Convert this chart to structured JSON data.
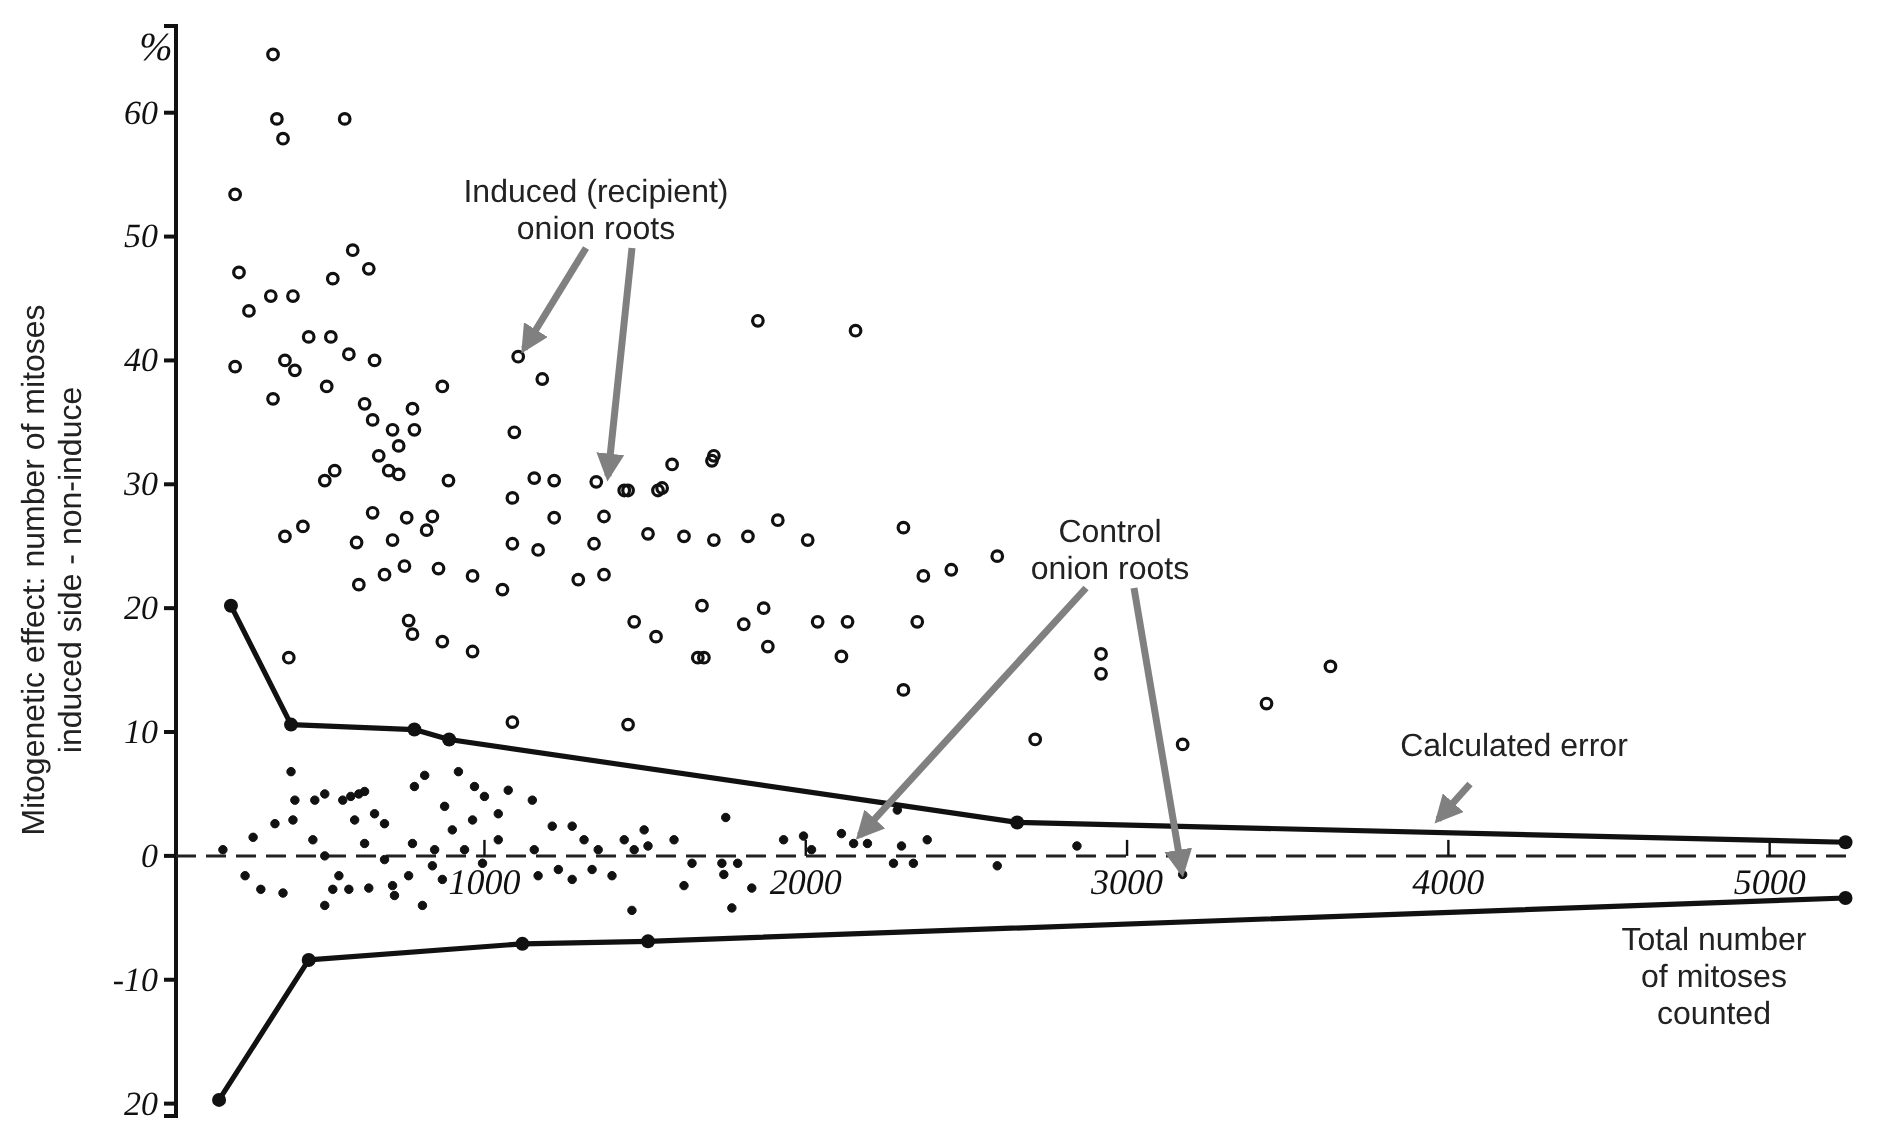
{
  "chart_data": {
    "type": "scatter",
    "ylabel": "Mitogenetic effect: number of mitoses\ninduced side - non-induce",
    "xlabel": "Total number\nof mitoses\ncounted",
    "xlim": [
      40,
      5250
    ],
    "ylim": [
      -21,
      67
    ],
    "xticks": [
      1000,
      2000,
      3000,
      4000,
      5000
    ],
    "yticks": [
      {
        "value": -20,
        "label": "20"
      },
      -10,
      0,
      10,
      20,
      30,
      40,
      50,
      60
    ],
    "marker": "circle",
    "grid": false,
    "ref_lines": [
      {
        "axis": "y",
        "value": 0,
        "line_style": "dashed",
        "color": "#222222"
      }
    ],
    "annotations": [
      "%",
      {
        "text": "Induced (recipient)\nonion roots",
        "x": 1105,
        "y": 40.3
      },
      {
        "text": "Control\nonion roots",
        "x": 2149,
        "y": 1
      },
      {
        "text": "Calculated error",
        "x": 3950,
        "y": 2.3
      }
    ],
    "series": [
      {
        "color": "#111111",
        "x": [
          342,
          354,
          373,
          565,
          224,
          590,
          640,
          236,
          528,
          335,
          404,
          267,
          453,
          522,
          224,
          379,
          410,
          578,
          658,
          342,
          509,
          869,
          1105,
          1180,
          1093,
          627,
          776,
          652,
          714,
          782,
          733,
          671,
          702,
          733,
          534,
          503,
          888,
          1087,
          1155,
          1217,
          1348,
          1447,
          1540,
          1584,
          1708,
          652,
          758,
          838,
          1217,
          1372,
          379,
          435,
          602,
          714,
          820,
          1087,
          1167,
          1341,
          1509,
          1621,
          1714,
          1820,
          609,
          689,
          751,
          857,
          963,
          1056,
          1292,
          1372,
          1851,
          2155,
          1714,
          1435,
          1553,
          1913,
          2006,
          2304,
          2366,
          2453,
          2596,
          1677,
          1869,
          1807,
          2037,
          2130,
          2347,
          1466,
          1534,
          1683,
          1882,
          2111,
          2304,
          2919,
          2919,
          3434,
          3633,
          2714,
          3173,
          391,
          776,
          869,
          963,
          764,
          1087,
          1447,
          1664
        ],
        "values": [
          64.7,
          59.5,
          57.9,
          59.5,
          53.4,
          48.9,
          47.4,
          47.1,
          46.6,
          45.2,
          45.2,
          44,
          41.9,
          41.9,
          39.5,
          40,
          39.2,
          40.5,
          40,
          36.9,
          37.9,
          37.9,
          40.3,
          38.5,
          34.2,
          36.5,
          36.1,
          35.2,
          34.4,
          34.4,
          33.1,
          32.3,
          31.1,
          30.8,
          31.1,
          30.3,
          30.3,
          28.9,
          30.5,
          30.3,
          30.2,
          29.5,
          29.5,
          31.6,
          31.9,
          27.7,
          27.3,
          27.4,
          27.3,
          27.4,
          25.8,
          26.6,
          25.3,
          25.5,
          26.3,
          25.2,
          24.7,
          25.2,
          26,
          25.8,
          25.5,
          25.8,
          21.9,
          22.7,
          23.4,
          23.2,
          22.6,
          21.5,
          22.3,
          22.7,
          43.2,
          42.4,
          32.3,
          29.5,
          29.7,
          27.1,
          25.5,
          26.5,
          22.6,
          23.1,
          24.2,
          20.2,
          20,
          18.7,
          18.9,
          18.9,
          18.9,
          18.9,
          17.7,
          16,
          16.9,
          16.1,
          13.4,
          16.3,
          14.7,
          12.3,
          15.3,
          9.4,
          9,
          16,
          17.9,
          17.3,
          16.5,
          19,
          10.8,
          10.6,
          16
        ]
      },
      {
        "color": "#111111",
        "x": [
          186,
          255,
          280,
          304,
          373,
          348,
          398,
          410,
          404,
          466,
          472,
          503,
          503,
          503,
          528,
          559,
          584,
          596,
          609,
          627,
          627,
          547,
          578,
          640,
          658,
          689,
          689,
          714,
          720,
          764,
          776,
          782,
          814,
          807,
          838,
          845,
          869,
          876,
          900,
          919,
          938,
          963,
          969,
          994,
          1000,
          1043,
          1074,
          1043,
          1149,
          1155,
          1167,
          1211,
          1230,
          1273,
          1273,
          1310,
          1335,
          1354,
          1397,
          1435,
          1466,
          1459,
          1497,
          1509,
          1590,
          1621,
          1646,
          1739,
          1751,
          1745,
          1770,
          1788,
          1832,
          1931,
          1993,
          2018,
          2111,
          2149,
          2192,
          2285,
          2298,
          2273,
          2335,
          2378,
          2596,
          2844,
          3173
        ],
        "values": [
          0.5,
          -1.6,
          1.5,
          -2.7,
          -3,
          2.6,
          6.8,
          4.5,
          2.9,
          1.3,
          4.5,
          5,
          0,
          -4,
          -2.7,
          4.5,
          4.8,
          2.9,
          5,
          5.2,
          1,
          -1.6,
          -2.7,
          -2.6,
          3.4,
          2.6,
          -0.3,
          -2.4,
          -3.2,
          -1.6,
          1,
          5.6,
          6.5,
          -4,
          -0.8,
          0.5,
          -1.9,
          4,
          2.1,
          6.8,
          0.5,
          2.9,
          5.6,
          -0.6,
          4.8,
          3.4,
          5.3,
          1.3,
          4.5,
          0.5,
          -1.6,
          2.4,
          -1.1,
          2.4,
          -1.9,
          1.3,
          -1.1,
          0.5,
          -1.6,
          1.3,
          0.5,
          -4.4,
          2.1,
          0.8,
          1.3,
          -2.4,
          -0.6,
          -0.6,
          3.1,
          -1.5,
          -4.2,
          -0.6,
          -2.6,
          1.3,
          1.6,
          0.5,
          1.8,
          1,
          1,
          3.7,
          0.8,
          -0.6,
          -0.6,
          1.3,
          -0.8,
          0.8,
          -1.5
        ]
      },
      {
        "type": "line",
        "color": "#111111",
        "x": [
          211,
          398,
          782,
          890,
          2658,
          5236
        ],
        "values": [
          20.2,
          10.6,
          10.2,
          9.4,
          2.7,
          1.1
        ]
      },
      {
        "type": "line",
        "color": "#111111",
        "x": [
          174,
          453,
          1118,
          1509,
          5236
        ],
        "values": [
          -19.7,
          -8.4,
          -7.1,
          -6.9,
          -3.4
        ]
      }
    ]
  }
}
